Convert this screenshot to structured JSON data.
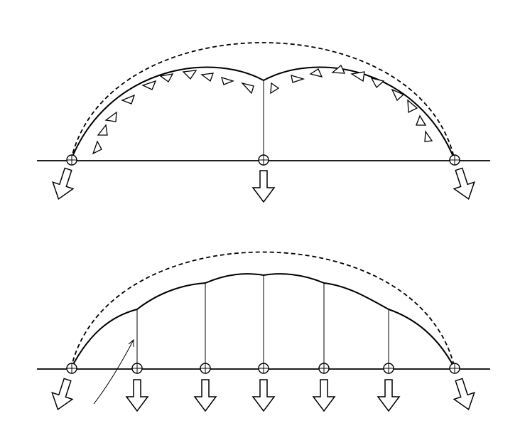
{
  "diagram": {
    "colors": {
      "stroke": "#000000",
      "fill": "#ffffff",
      "background": "#ffffff"
    },
    "panels": [
      {
        "name": "top-panel",
        "supports": 3,
        "vertical_hangers": 1,
        "ribbed_triangles": true
      },
      {
        "name": "bottom-panel",
        "supports": 7,
        "vertical_hangers": 5,
        "ribbed_triangles": false,
        "pointer_arrow": true
      }
    ]
  }
}
